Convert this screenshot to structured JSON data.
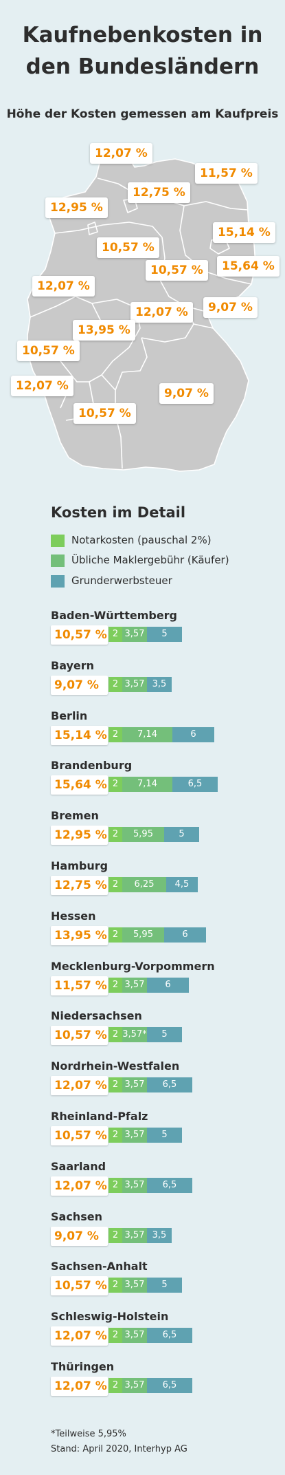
{
  "title_line1": "Kaufnebenkosten in",
  "title_line2": "den Bundesländern",
  "subtitle": "Höhe der Kosten gemessen am Kaufpreis",
  "map_labels": [
    {
      "text": "12,07 %",
      "region": "Schleswig-Holstein"
    },
    {
      "text": "11,57 %",
      "region": "Mecklenburg-Vorpommern"
    },
    {
      "text": "12,75 %",
      "region": "Hamburg"
    },
    {
      "text": "12,95 %",
      "region": "Bremen"
    },
    {
      "text": "15,14 %",
      "region": "Berlin"
    },
    {
      "text": "10,57 %",
      "region": "Niedersachsen"
    },
    {
      "text": "15,64 %",
      "region": "Brandenburg"
    },
    {
      "text": "10,57 %",
      "region": "Sachsen-Anhalt"
    },
    {
      "text": "12,07 %",
      "region": "Nordrhein-Westfalen"
    },
    {
      "text": "9,07 %",
      "region": "Sachsen"
    },
    {
      "text": "12,07 %",
      "region": "Thüringen"
    },
    {
      "text": "13,95 %",
      "region": "Hessen"
    },
    {
      "text": "10,57 %",
      "region": "Rheinland-Pfalz"
    },
    {
      "text": "12,07 %",
      "region": "Saarland"
    },
    {
      "text": "9,07 %",
      "region": "Bayern"
    },
    {
      "text": "10,57 %",
      "region": "Baden-Württemberg"
    }
  ],
  "section_title": "Kosten im Detail",
  "colors": {
    "notar": "#7dcd5c",
    "makler": "#74bf7a",
    "grunderwerb": "#5fa2b1",
    "accent": "#f08a00",
    "map": "#c9c9c9",
    "background": "#e4eff2"
  },
  "chart_data": {
    "type": "bar",
    "stacked": true,
    "orientation": "horizontal",
    "series_names": [
      "Notarkosten (pauschal 2%)",
      "Übliche Maklergebühr (Käufer)",
      "Grunderwerbsteuer"
    ],
    "rows": [
      {
        "name": "Baden-Württemberg",
        "total": "10,57 %",
        "segments": [
          {
            "value": 2,
            "label": "2"
          },
          {
            "value": 3.57,
            "label": "3,57"
          },
          {
            "value": 5,
            "label": "5"
          }
        ]
      },
      {
        "name": "Bayern",
        "total": "9,07 %",
        "segments": [
          {
            "value": 2,
            "label": "2"
          },
          {
            "value": 3.57,
            "label": "3,57"
          },
          {
            "value": 3.5,
            "label": "3,5"
          }
        ]
      },
      {
        "name": "Berlin",
        "total": "15,14 %",
        "segments": [
          {
            "value": 2,
            "label": "2"
          },
          {
            "value": 7.14,
            "label": "7,14"
          },
          {
            "value": 6,
            "label": "6"
          }
        ]
      },
      {
        "name": "Brandenburg",
        "total": "15,64 %",
        "segments": [
          {
            "value": 2,
            "label": "2"
          },
          {
            "value": 7.14,
            "label": "7,14"
          },
          {
            "value": 6.5,
            "label": "6,5"
          }
        ]
      },
      {
        "name": "Bremen",
        "total": "12,95 %",
        "segments": [
          {
            "value": 2,
            "label": "2"
          },
          {
            "value": 5.95,
            "label": "5,95"
          },
          {
            "value": 5,
            "label": "5"
          }
        ]
      },
      {
        "name": "Hamburg",
        "total": "12,75 %",
        "segments": [
          {
            "value": 2,
            "label": "2"
          },
          {
            "value": 6.25,
            "label": "6,25"
          },
          {
            "value": 4.5,
            "label": "4,5"
          }
        ]
      },
      {
        "name": "Hessen",
        "total": "13,95 %",
        "segments": [
          {
            "value": 2,
            "label": "2"
          },
          {
            "value": 5.95,
            "label": "5,95"
          },
          {
            "value": 6,
            "label": "6"
          }
        ]
      },
      {
        "name": "Mecklenburg-Vorpommern",
        "total": "11,57 %",
        "segments": [
          {
            "value": 2,
            "label": "2"
          },
          {
            "value": 3.57,
            "label": "3,57"
          },
          {
            "value": 6,
            "label": "6"
          }
        ]
      },
      {
        "name": "Niedersachsen",
        "total": "10,57 %",
        "segments": [
          {
            "value": 2,
            "label": "2"
          },
          {
            "value": 3.57,
            "label": "3,57*"
          },
          {
            "value": 5,
            "label": "5"
          }
        ]
      },
      {
        "name": "Nordrhein-Westfalen",
        "total": "12,07 %",
        "segments": [
          {
            "value": 2,
            "label": "2"
          },
          {
            "value": 3.57,
            "label": "3,57"
          },
          {
            "value": 6.5,
            "label": "6,5"
          }
        ]
      },
      {
        "name": "Rheinland-Pfalz",
        "total": "10,57 %",
        "segments": [
          {
            "value": 2,
            "label": "2"
          },
          {
            "value": 3.57,
            "label": "3,57"
          },
          {
            "value": 5,
            "label": "5"
          }
        ]
      },
      {
        "name": "Saarland",
        "total": "12,07 %",
        "segments": [
          {
            "value": 2,
            "label": "2"
          },
          {
            "value": 3.57,
            "label": "3,57"
          },
          {
            "value": 6.5,
            "label": "6,5"
          }
        ]
      },
      {
        "name": "Sachsen",
        "total": "9,07 %",
        "segments": [
          {
            "value": 2,
            "label": "2"
          },
          {
            "value": 3.57,
            "label": "3,57"
          },
          {
            "value": 3.5,
            "label": "3,5"
          }
        ]
      },
      {
        "name": "Sachsen-Anhalt",
        "total": "10,57 %",
        "segments": [
          {
            "value": 2,
            "label": "2"
          },
          {
            "value": 3.57,
            "label": "3,57"
          },
          {
            "value": 5,
            "label": "5"
          }
        ]
      },
      {
        "name": "Schleswig-Holstein",
        "total": "12,07 %",
        "segments": [
          {
            "value": 2,
            "label": "2"
          },
          {
            "value": 3.57,
            "label": "3,57"
          },
          {
            "value": 6.5,
            "label": "6,5"
          }
        ]
      },
      {
        "name": "Thüringen",
        "total": "12,07 %",
        "segments": [
          {
            "value": 2,
            "label": "2"
          },
          {
            "value": 3.57,
            "label": "3,57"
          },
          {
            "value": 6.5,
            "label": "6,5"
          }
        ]
      }
    ]
  },
  "footnote": "*Teilweise 5,95%",
  "source": "Stand: April 2020, Interhyp AG"
}
